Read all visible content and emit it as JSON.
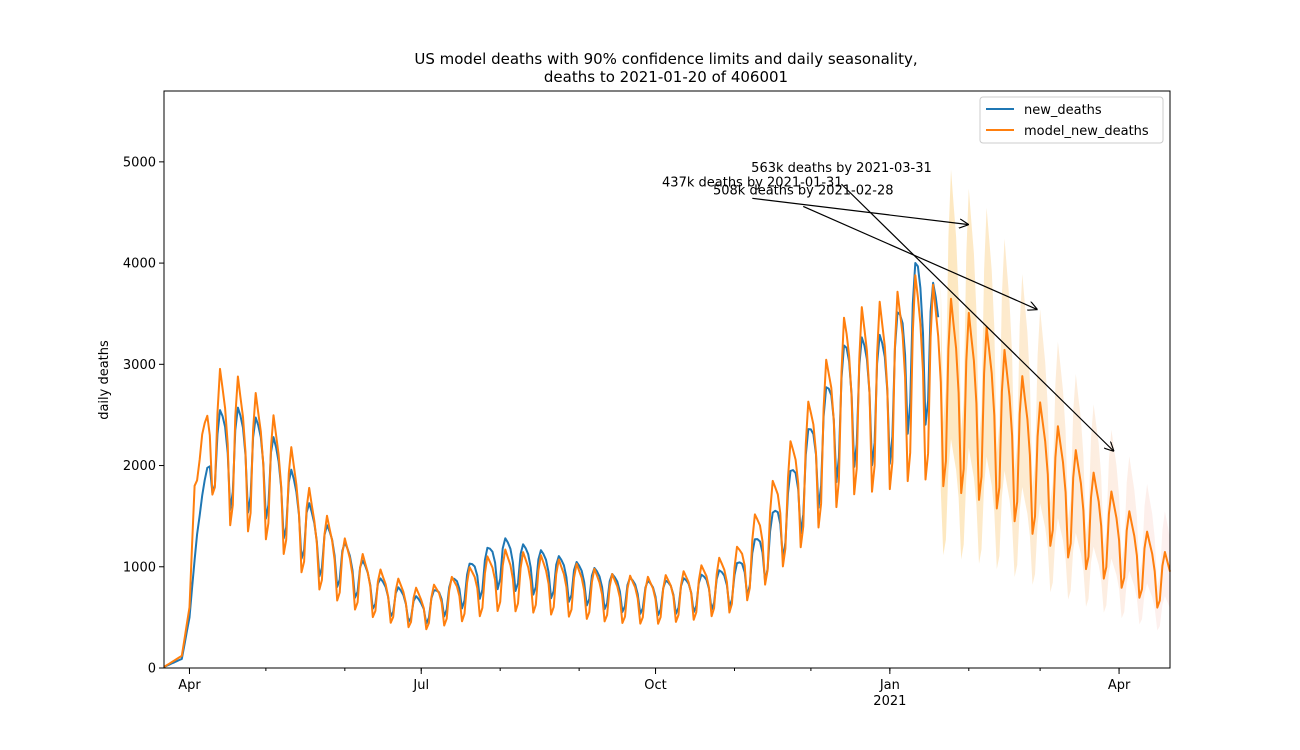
{
  "chart_data": {
    "type": "line",
    "title": "US model deaths with 90% confidence limits and daily seasonality,",
    "title_line2": "deaths to 2021-01-20 of 406001",
    "xlabel": "",
    "ylabel": "daily deaths",
    "x_start": "2020-03-22",
    "x_end": "2021-04-21",
    "ylim": [
      0,
      5700
    ],
    "yticks": [
      0,
      1000,
      2000,
      3000,
      4000,
      5000
    ],
    "xticks": [
      {
        "date": "2020-04-01",
        "label": "Apr",
        "sublabel": ""
      },
      {
        "date": "2020-07-01",
        "label": "Jul",
        "sublabel": ""
      },
      {
        "date": "2020-10-01",
        "label": "Oct",
        "sublabel": ""
      },
      {
        "date": "2021-01-01",
        "label": "Jan",
        "sublabel": "2021"
      },
      {
        "date": "2021-04-01",
        "label": "Apr",
        "sublabel": ""
      }
    ],
    "grid": false,
    "legend_position": "top-right",
    "series": [
      {
        "name": "new_deaths",
        "color": "#1f77b4",
        "weekly_pattern": [
          1.08,
          1.18,
          1.15,
          1.1,
          0.98,
          0.72,
          0.8
        ],
        "level_points": [
          {
            "date": "2020-03-22",
            "value": 10
          },
          {
            "date": "2020-03-29",
            "value": 90
          },
          {
            "date": "2020-04-01",
            "value": 500
          },
          {
            "date": "2020-04-04",
            "value": 1350
          },
          {
            "date": "2020-04-10",
            "value": 2150
          },
          {
            "date": "2020-04-20",
            "value": 2180
          },
          {
            "date": "2020-05-01",
            "value": 2050
          },
          {
            "date": "2020-05-10",
            "value": 1700
          },
          {
            "date": "2020-05-20",
            "value": 1300
          },
          {
            "date": "2020-06-01",
            "value": 1050
          },
          {
            "date": "2020-06-15",
            "value": 750
          },
          {
            "date": "2020-07-01",
            "value": 580
          },
          {
            "date": "2020-07-15",
            "value": 780
          },
          {
            "date": "2020-08-01",
            "value": 1100
          },
          {
            "date": "2020-08-15",
            "value": 1000
          },
          {
            "date": "2020-09-01",
            "value": 880
          },
          {
            "date": "2020-09-15",
            "value": 780
          },
          {
            "date": "2020-10-01",
            "value": 720
          },
          {
            "date": "2020-10-15",
            "value": 760
          },
          {
            "date": "2020-11-01",
            "value": 850
          },
          {
            "date": "2020-11-15",
            "value": 1250
          },
          {
            "date": "2020-12-01",
            "value": 2050
          },
          {
            "date": "2020-12-15",
            "value": 2750
          },
          {
            "date": "2021-01-01",
            "value": 2800
          },
          {
            "date": "2021-01-12",
            "value": 3450
          },
          {
            "date": "2021-01-20",
            "value": 3150
          }
        ]
      },
      {
        "name": "model_new_deaths",
        "color": "#ff7f0e",
        "weekly_pattern": [
          1.1,
          1.28,
          1.2,
          1.12,
          0.97,
          0.62,
          0.71
        ],
        "level_points": [
          {
            "date": "2020-03-22",
            "value": 10
          },
          {
            "date": "2020-03-29",
            "value": 120
          },
          {
            "date": "2020-04-01",
            "value": 600
          },
          {
            "date": "2020-04-03",
            "value": 1800
          },
          {
            "date": "2020-04-08",
            "value": 2350
          },
          {
            "date": "2020-04-20",
            "value": 2250
          },
          {
            "date": "2020-05-01",
            "value": 2050
          },
          {
            "date": "2020-05-10",
            "value": 1750
          },
          {
            "date": "2020-05-20",
            "value": 1300
          },
          {
            "date": "2020-06-01",
            "value": 1000
          },
          {
            "date": "2020-06-15",
            "value": 760
          },
          {
            "date": "2020-07-01",
            "value": 600
          },
          {
            "date": "2020-07-15",
            "value": 720
          },
          {
            "date": "2020-08-01",
            "value": 920
          },
          {
            "date": "2020-08-15",
            "value": 880
          },
          {
            "date": "2020-09-01",
            "value": 800
          },
          {
            "date": "2020-09-15",
            "value": 720
          },
          {
            "date": "2020-10-01",
            "value": 700
          },
          {
            "date": "2020-10-15",
            "value": 760
          },
          {
            "date": "2020-11-01",
            "value": 900
          },
          {
            "date": "2020-11-15",
            "value": 1400
          },
          {
            "date": "2020-12-01",
            "value": 2100
          },
          {
            "date": "2020-12-15",
            "value": 2750
          },
          {
            "date": "2021-01-01",
            "value": 2850
          },
          {
            "date": "2021-01-12",
            "value": 3050
          },
          {
            "date": "2021-01-25",
            "value": 2850
          },
          {
            "date": "2021-02-10",
            "value": 2600
          },
          {
            "date": "2021-03-01",
            "value": 2050
          },
          {
            "date": "2021-03-20",
            "value": 1550
          },
          {
            "date": "2021-04-01",
            "value": 1300
          },
          {
            "date": "2021-04-21",
            "value": 850
          }
        ]
      }
    ],
    "confidence_band": {
      "start": "2021-01-21",
      "upper_ratio": 1.35,
      "lower_ratio": 0.62,
      "color_start": "#fde8bf",
      "color_end": "#fdf0f0"
    },
    "annotations": [
      {
        "text": "437k deaths by 2021-01-31",
        "anchor_date": "2020-11-08",
        "anchor_value": 4640,
        "target_date": "2021-02-01",
        "target_value": 4380
      },
      {
        "text": "508k deaths by 2021-02-28",
        "anchor_date": "2020-11-28",
        "anchor_value": 4560,
        "target_date": "2021-02-28",
        "target_value": 3540
      },
      {
        "text": "563k deaths by 2021-03-31",
        "anchor_date": "2020-12-13",
        "anchor_value": 4780,
        "target_date": "2021-03-30",
        "target_value": 2140
      }
    ]
  }
}
